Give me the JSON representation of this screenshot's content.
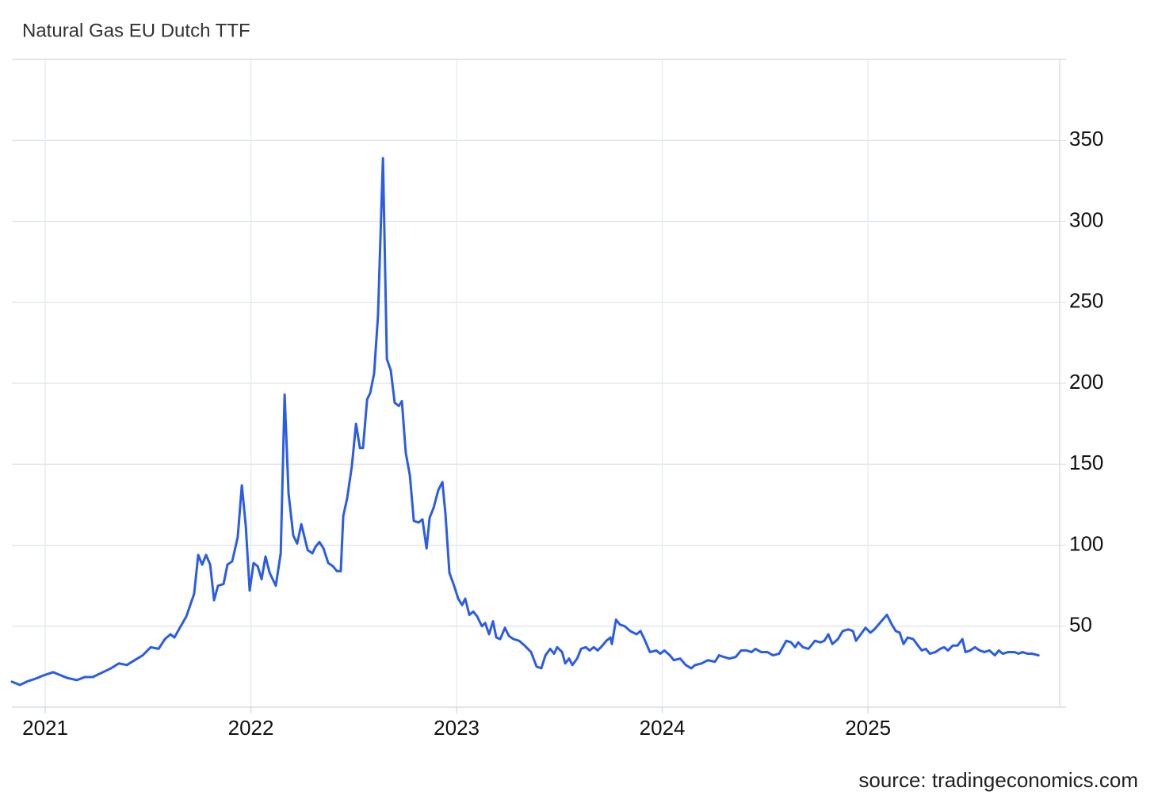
{
  "chart_data": {
    "type": "line",
    "title": "Natural Gas EU Dutch TTF",
    "source": "source: tradingeconomics.com",
    "xlim": [
      2020.838,
      2025.932
    ],
    "xticks": [
      2021,
      2022,
      2023,
      2024,
      2025
    ],
    "ylim": [
      0,
      400
    ],
    "yticks": [
      50,
      100,
      150,
      200,
      250,
      300,
      350
    ],
    "grid": true,
    "x": [
      2020.838,
      2020.877,
      2020.915,
      2020.954,
      2020.992,
      2021.039,
      2021.069,
      2021.108,
      2021.154,
      2021.193,
      2021.231,
      2021.281,
      2021.32,
      2021.358,
      2021.397,
      2021.435,
      2021.474,
      2021.513,
      2021.551,
      2021.582,
      2021.609,
      2021.628,
      2021.659,
      2021.686,
      2021.724,
      2021.744,
      2021.763,
      2021.782,
      2021.802,
      2021.821,
      2021.84,
      2021.867,
      2021.886,
      2021.909,
      2021.936,
      2021.956,
      2021.975,
      2021.994,
      2022.013,
      2022.033,
      2022.052,
      2022.071,
      2022.091,
      2022.121,
      2022.145,
      2022.164,
      2022.183,
      2022.206,
      2022.225,
      2022.245,
      2022.276,
      2022.299,
      2022.314,
      2022.333,
      2022.353,
      2022.376,
      2022.399,
      2022.418,
      2022.437,
      2022.449,
      2022.468,
      2022.491,
      2022.511,
      2022.53,
      2022.545,
      2022.565,
      2022.58,
      2022.599,
      2022.618,
      2022.642,
      2022.661,
      2022.68,
      2022.699,
      2022.719,
      2022.734,
      2022.753,
      2022.773,
      2022.792,
      2022.815,
      2022.834,
      2022.854,
      2022.869,
      2022.888,
      2022.911,
      2022.931,
      2022.946,
      2022.965,
      2022.985,
      2023.008,
      2023.027,
      2023.042,
      2023.062,
      2023.081,
      2023.1,
      2023.123,
      2023.139,
      2023.158,
      2023.177,
      2023.193,
      2023.212,
      2023.235,
      2023.254,
      2023.277,
      2023.304,
      2023.331,
      2023.362,
      2023.389,
      2023.412,
      2023.432,
      2023.455,
      2023.474,
      2023.489,
      2023.513,
      2023.528,
      2023.547,
      2023.563,
      2023.586,
      2023.605,
      2023.628,
      2023.647,
      2023.667,
      2023.686,
      2023.709,
      2023.728,
      2023.748,
      2023.755,
      2023.775,
      2023.794,
      2023.817,
      2023.844,
      2023.875,
      2023.894,
      2023.913,
      2023.94,
      2023.971,
      2023.99,
      2024.01,
      2024.037,
      2024.056,
      2024.087,
      2024.114,
      2024.141,
      2024.16,
      2024.191,
      2024.222,
      2024.256,
      2024.276,
      2024.299,
      2024.326,
      2024.357,
      2024.383,
      2024.41,
      2024.434,
      2024.453,
      2024.48,
      2024.511,
      2024.538,
      2024.568,
      2024.603,
      2024.626,
      2024.646,
      2024.661,
      2024.684,
      2024.711,
      2024.742,
      2024.769,
      2024.788,
      2024.807,
      2024.827,
      2024.854,
      2024.877,
      2024.904,
      2024.927,
      2024.942,
      2024.965,
      2024.988,
      2025.012,
      2025.031,
      2025.058,
      2025.092,
      2025.116,
      2025.135,
      2025.154,
      2025.173,
      2025.193,
      2025.22,
      2025.243,
      2025.262,
      2025.281,
      2025.301,
      2025.328,
      2025.351,
      2025.37,
      2025.389,
      2025.412,
      2025.435,
      2025.459,
      2025.474,
      2025.497,
      2025.52,
      2025.543,
      2025.566,
      2025.59,
      2025.617,
      2025.636,
      2025.655,
      2025.682,
      2025.713,
      2025.732,
      2025.751,
      2025.775,
      2025.798,
      2025.829
    ],
    "series": [
      {
        "color": "#2a5ce6",
        "values": [
          15.7,
          13.7,
          16,
          17.6,
          19.6,
          21.6,
          20,
          18,
          16.7,
          18.6,
          18.6,
          21.6,
          24,
          27,
          26,
          29,
          32,
          37,
          36,
          42,
          45,
          43,
          50,
          56,
          70,
          94,
          88,
          94,
          88,
          66,
          75,
          76,
          88,
          90,
          105,
          137,
          112,
          72,
          89,
          87,
          79,
          93,
          83,
          75,
          95,
          193,
          132,
          106,
          101,
          113,
          97,
          95,
          99,
          102,
          98,
          89,
          87,
          84,
          84,
          118,
          129,
          149,
          175,
          160,
          160,
          190,
          194,
          206,
          242,
          339,
          215,
          208,
          188,
          186,
          189,
          157,
          143,
          115,
          114,
          116,
          98,
          117,
          123,
          134,
          139,
          119,
          83,
          76,
          67,
          63,
          67,
          57,
          59,
          56,
          50,
          52,
          45,
          53,
          43,
          42,
          49,
          44,
          42,
          41,
          38,
          34,
          25,
          24,
          32,
          36,
          33,
          37,
          34,
          27,
          30,
          26,
          30,
          36,
          37,
          35,
          37,
          35,
          38,
          41,
          43,
          39,
          54,
          51,
          50,
          47,
          45,
          47,
          42,
          34,
          35,
          33,
          35,
          32,
          29,
          30,
          26,
          24,
          26,
          27,
          29,
          28,
          32,
          31,
          30,
          31,
          35,
          35,
          34,
          36,
          34,
          34,
          32,
          33,
          41,
          40,
          37,
          40,
          37,
          36,
          41,
          40,
          41,
          45,
          39,
          42,
          47,
          48,
          47,
          41,
          45,
          49,
          46,
          48,
          52,
          57,
          51,
          47,
          46,
          39,
          43,
          42,
          38,
          35,
          36,
          33,
          34,
          36,
          37,
          35,
          38,
          38,
          42,
          34,
          35,
          37,
          35,
          34,
          35,
          32,
          35,
          33,
          34,
          34,
          33,
          34,
          33,
          33,
          32
        ]
      }
    ]
  }
}
